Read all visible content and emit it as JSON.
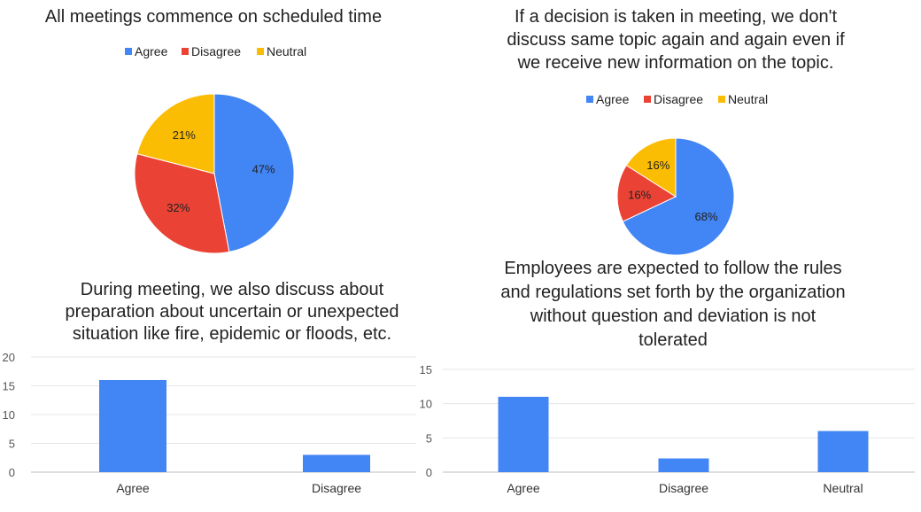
{
  "chart_data": [
    {
      "type": "pie",
      "title": "All meetings commence on scheduled time",
      "categories": [
        "Agree",
        "Disagree",
        "Neutral"
      ],
      "values": [
        47,
        32,
        21
      ],
      "value_labels": [
        "47%",
        "32%",
        "21%"
      ],
      "colors": [
        "#4285F4",
        "#EA4335",
        "#FBBC04"
      ],
      "legend_position": "top"
    },
    {
      "type": "pie",
      "title": "If a decision is taken in meeting, we don't discuss same topic again and again even if we receive new information on the topic.",
      "categories": [
        "Agree",
        "Disagree",
        "Neutral"
      ],
      "values": [
        68,
        16,
        16
      ],
      "value_labels": [
        "68%",
        "16%",
        "16%"
      ],
      "colors": [
        "#4285F4",
        "#EA4335",
        "#FBBC04"
      ],
      "legend_position": "top"
    },
    {
      "type": "bar",
      "title": "During meeting, we also discuss about preparation about uncertain or unexpected situation like fire, epidemic or floods, etc.",
      "categories": [
        "Agree",
        "Disagree"
      ],
      "values": [
        16,
        3
      ],
      "ylim": [
        0,
        20
      ],
      "yticks": [
        "0",
        "5",
        "10",
        "15",
        "20"
      ],
      "color": "#4285F4",
      "grid": true
    },
    {
      "type": "bar",
      "title": "Employees are expected to follow the rules and regulations set forth by the organization without question and deviation is not tolerated",
      "categories": [
        "Agree",
        "Disagree",
        "Neutral"
      ],
      "values": [
        11,
        2,
        6
      ],
      "ylim": [
        0,
        15
      ],
      "yticks": [
        "0",
        "5",
        "10",
        "15"
      ],
      "color": "#4285F4",
      "grid": true
    }
  ]
}
